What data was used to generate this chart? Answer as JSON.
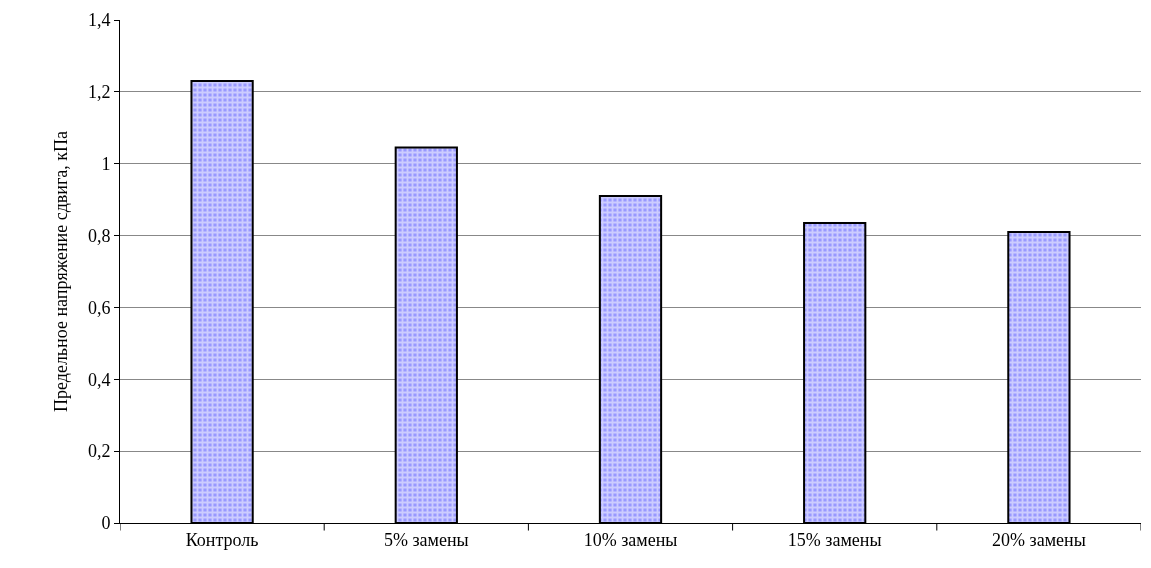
{
  "chart_data": {
    "type": "bar",
    "ylabel": "Предельное напряжение сдвига, кПа",
    "categories": [
      "Контроль",
      "5% замены",
      "10% замены",
      "15% замены",
      "20% замены"
    ],
    "values": [
      1.23,
      1.045,
      0.91,
      0.835,
      0.81
    ],
    "color": "#9999ff",
    "ylim": [
      0,
      1.4
    ],
    "yticks": [
      0,
      {
        "value": 0.2,
        "label": "0,2"
      },
      {
        "value": 0.4,
        "label": "0,4"
      },
      {
        "value": 0.6,
        "label": "0,6"
      },
      {
        "value": 0.8,
        "label": "0,8"
      },
      1,
      {
        "value": 1.2,
        "label": "1,2"
      },
      {
        "value": 1.4,
        "label": "1,4"
      }
    ],
    "grid": "y"
  }
}
